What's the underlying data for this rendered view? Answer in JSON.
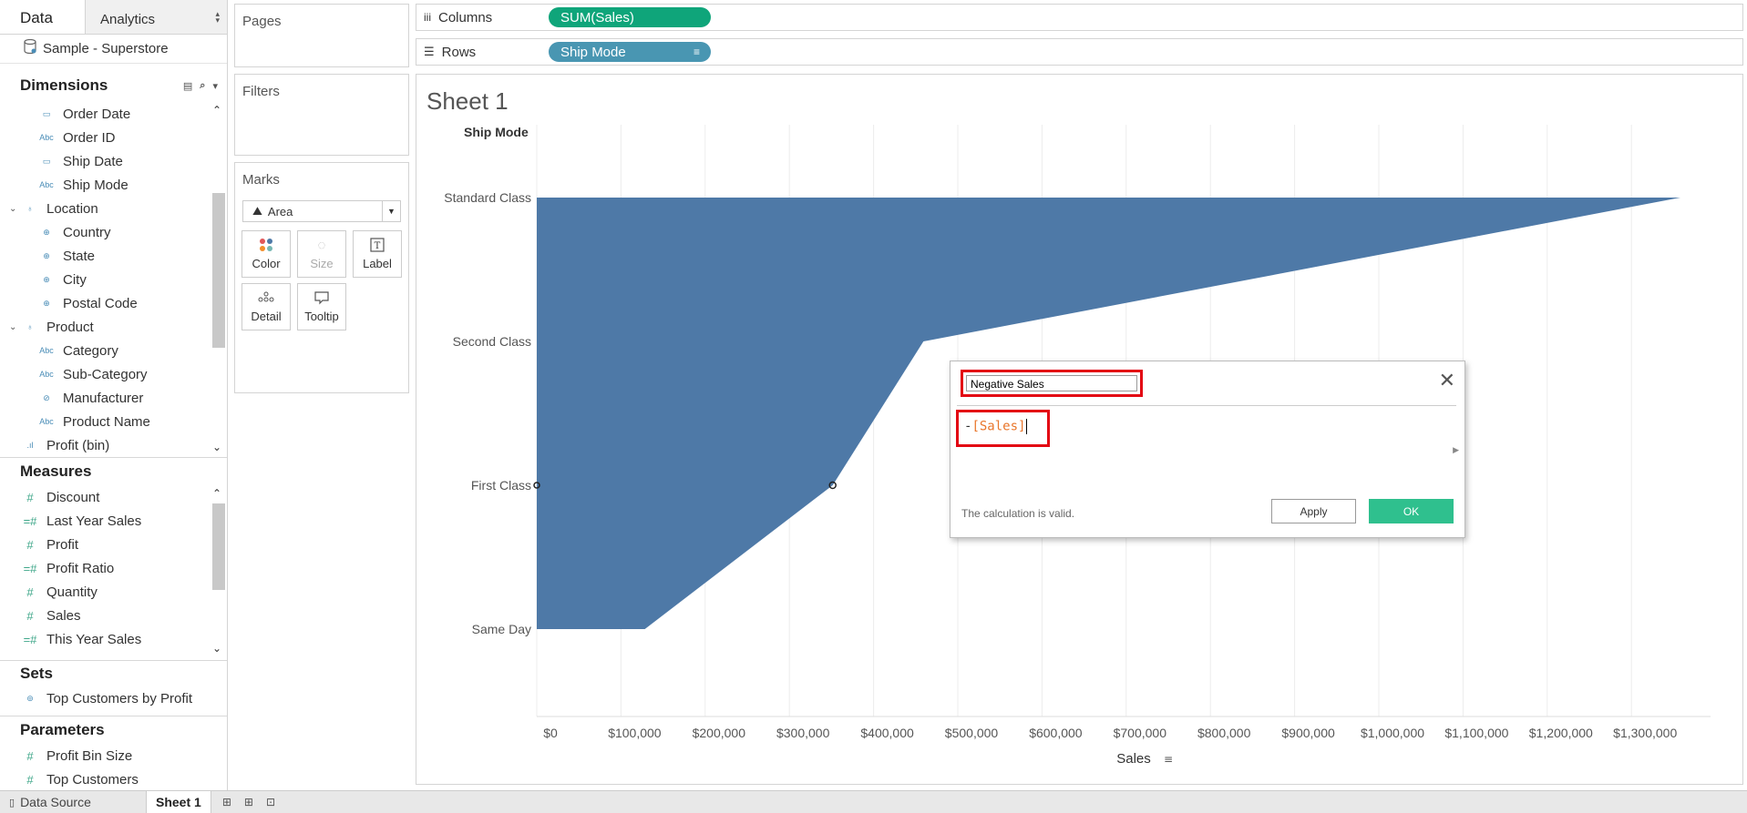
{
  "data_pane": {
    "tabs": {
      "data": "Data",
      "analytics": "Analytics"
    },
    "datasource": "Sample - Superstore",
    "dimensions": {
      "title": "Dimensions",
      "items": [
        {
          "label": "Order Date",
          "icon": "calendar-icon"
        },
        {
          "label": "Order ID",
          "icon": "abc-icon"
        },
        {
          "label": "Ship Date",
          "icon": "calendar-icon"
        },
        {
          "label": "Ship Mode",
          "icon": "abc-icon"
        },
        {
          "label": "Location",
          "icon": "hierarchy-icon"
        },
        {
          "label": "Country",
          "icon": "globe-icon"
        },
        {
          "label": "State",
          "icon": "globe-icon"
        },
        {
          "label": "City",
          "icon": "globe-icon"
        },
        {
          "label": "Postal Code",
          "icon": "globe-icon"
        },
        {
          "label": "Product",
          "icon": "hierarchy-icon"
        },
        {
          "label": "Category",
          "icon": "abc-icon"
        },
        {
          "label": "Sub-Category",
          "icon": "abc-icon"
        },
        {
          "label": "Manufacturer",
          "icon": "paperclip-icon"
        },
        {
          "label": "Product Name",
          "icon": "abc-icon"
        },
        {
          "label": "Profit (bin)",
          "icon": "bin-icon"
        }
      ]
    },
    "measures": {
      "title": "Measures",
      "items": [
        {
          "label": "Discount",
          "icon": "number-icon"
        },
        {
          "label": "Last Year Sales",
          "icon": "calc-number-icon"
        },
        {
          "label": "Profit",
          "icon": "number-icon"
        },
        {
          "label": "Profit Ratio",
          "icon": "calc-number-icon"
        },
        {
          "label": "Quantity",
          "icon": "number-icon"
        },
        {
          "label": "Sales",
          "icon": "number-icon"
        },
        {
          "label": "This Year Sales",
          "icon": "calc-number-icon"
        }
      ]
    },
    "sets": {
      "title": "Sets",
      "items": [
        {
          "label": "Top Customers by Profit",
          "icon": "set-icon"
        }
      ]
    },
    "parameters": {
      "title": "Parameters",
      "items": [
        {
          "label": "Profit Bin Size",
          "icon": "number-icon"
        },
        {
          "label": "Top Customers",
          "icon": "number-icon"
        }
      ]
    }
  },
  "pages": {
    "title": "Pages"
  },
  "filters": {
    "title": "Filters"
  },
  "marks": {
    "title": "Marks",
    "type": "Area",
    "buttons": {
      "color": "Color",
      "size": "Size",
      "label": "Label",
      "detail": "Detail",
      "tooltip": "Tooltip"
    }
  },
  "shelves": {
    "columns": {
      "label": "Columns",
      "pill": "SUM(Sales)"
    },
    "rows": {
      "label": "Rows",
      "pill": "Ship Mode"
    }
  },
  "sheet": {
    "title": "Sheet 1",
    "row_header": "Ship Mode",
    "axis_title": "Sales"
  },
  "colors": {
    "area": "#4e79a7",
    "pill_green": "#0fa57a",
    "pill_blue": "#4996b2",
    "ok": "#2fc08e",
    "highlight": "#e30613"
  },
  "chart_data": {
    "type": "area",
    "orientation": "horizontal",
    "categories": [
      "Standard Class",
      "Second Class",
      "First Class",
      "Same Day"
    ],
    "series": [
      {
        "values": [
          1358216,
          459194,
          351428,
          128364
        ]
      }
    ],
    "xlabel": "Sales",
    "ylabel": "Ship Mode",
    "xlim": [
      0,
      1400000
    ],
    "x_ticks": [
      "$0",
      "$100,000",
      "$200,000",
      "$300,000",
      "$400,000",
      "$500,000",
      "$600,000",
      "$700,000",
      "$800,000",
      "$900,000",
      "$1,000,000",
      "$1,100,000",
      "$1,200,000",
      "$1,300,000"
    ],
    "grid": "vertical"
  },
  "calc_dialog": {
    "name": "Negative Sales",
    "formula_operator": "-",
    "formula_field": "[Sales]",
    "status": "The calculation is valid.",
    "apply": "Apply",
    "ok": "OK"
  },
  "bottom_tabs": {
    "data_source": "Data Source",
    "sheet": "Sheet 1"
  }
}
